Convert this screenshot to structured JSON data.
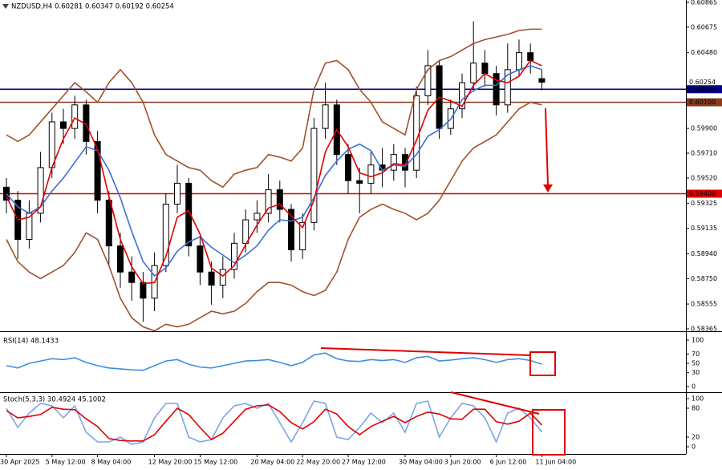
{
  "chart_data": [
    {
      "type": "candlestick",
      "title": "NZDUSD,H4  0.60281 0.60347 0.60192 0.60254",
      "categories": [
        "30 Apr 2025",
        null,
        null,
        null,
        "5 May 12:00",
        null,
        null,
        null,
        "8 May 04:00",
        null,
        null,
        null,
        null,
        "12 May 20:00",
        null,
        null,
        null,
        "15 May 12:00",
        null,
        null,
        null,
        null,
        "20 May 04:00",
        null,
        null,
        null,
        "22 May 20:00",
        null,
        null,
        null,
        "27 May 12:00",
        null,
        null,
        null,
        null,
        "30 May 04:00",
        null,
        null,
        null,
        "3 Jun 20:00",
        null,
        null,
        null,
        "6 Jun 12:00",
        null,
        null,
        null,
        "11 Jun 04:00"
      ],
      "open": [
        0.5945,
        0.5935,
        0.5905,
        0.5925,
        0.596,
        0.5995,
        0.599,
        0.6008,
        0.598,
        0.5935,
        0.59,
        0.588,
        0.5872,
        0.586,
        0.5885,
        0.5932,
        0.5948,
        0.59,
        0.588,
        0.587,
        0.5882,
        0.5902,
        0.592,
        0.5925,
        0.5943,
        0.5928,
        0.5897,
        0.5918,
        0.599,
        0.6008,
        0.597,
        0.595,
        0.5948,
        0.5962,
        0.5958,
        0.597,
        0.5958,
        0.6015,
        0.6038,
        0.599,
        0.6005,
        0.6025,
        0.604,
        0.6032,
        0.6008,
        0.6035,
        0.6048,
        0.60281
      ],
      "high": [
        0.5952,
        0.5942,
        0.5935,
        0.5972,
        0.6002,
        0.6005,
        0.6015,
        0.6012,
        0.5988,
        0.5942,
        0.591,
        0.5892,
        0.588,
        0.5895,
        0.594,
        0.5962,
        0.5952,
        0.5908,
        0.5888,
        0.5892,
        0.591,
        0.5928,
        0.5935,
        0.5955,
        0.595,
        0.5932,
        0.5925,
        0.5998,
        0.6025,
        0.6012,
        0.5978,
        0.596,
        0.5972,
        0.5975,
        0.5978,
        0.5975,
        0.6022,
        0.605,
        0.6042,
        0.6012,
        0.6032,
        0.6072,
        0.605,
        0.6038,
        0.6055,
        0.6058,
        0.6055,
        0.60347
      ],
      "low": [
        0.5925,
        0.589,
        0.5898,
        0.5918,
        0.5952,
        0.5978,
        0.5982,
        0.597,
        0.5925,
        0.5885,
        0.5868,
        0.5858,
        0.5842,
        0.585,
        0.588,
        0.5925,
        0.5892,
        0.587,
        0.5855,
        0.586,
        0.5875,
        0.5895,
        0.591,
        0.5918,
        0.5918,
        0.5888,
        0.589,
        0.5912,
        0.5982,
        0.5962,
        0.594,
        0.5925,
        0.594,
        0.5945,
        0.595,
        0.5945,
        0.5952,
        0.6008,
        0.5982,
        0.5985,
        0.5998,
        0.6018,
        0.6022,
        0.6,
        0.6002,
        0.603,
        0.6032,
        0.60192
      ],
      "close": [
        0.5935,
        0.5905,
        0.5925,
        0.596,
        0.5995,
        0.599,
        0.6008,
        0.598,
        0.5935,
        0.59,
        0.588,
        0.5872,
        0.586,
        0.5885,
        0.5932,
        0.5948,
        0.59,
        0.588,
        0.587,
        0.5882,
        0.5902,
        0.592,
        0.5925,
        0.5943,
        0.5928,
        0.5897,
        0.5918,
        0.599,
        0.6008,
        0.597,
        0.595,
        0.5948,
        0.5962,
        0.5958,
        0.597,
        0.5958,
        0.6015,
        0.6038,
        0.599,
        0.6005,
        0.6025,
        0.604,
        0.6032,
        0.6008,
        0.6035,
        0.6048,
        0.6042,
        0.60254
      ],
      "series": [
        {
          "color": "#a0522d",
          "values": [
            0.5985,
            0.598,
            0.5985,
            0.5995,
            0.6005,
            0.6015,
            0.6025,
            0.6018,
            0.601,
            0.6025,
            0.6035,
            0.6025,
            0.601,
            0.5985,
            0.597,
            0.5965,
            0.596,
            0.5958,
            0.595,
            0.5945,
            0.5955,
            0.5958,
            0.596,
            0.597,
            0.5968,
            0.5965,
            0.5975,
            0.602,
            0.604,
            0.6042,
            0.6035,
            0.602,
            0.601,
            0.5995,
            0.599,
            0.5985,
            0.602,
            0.6035,
            0.6042,
            0.6045,
            0.605,
            0.6055,
            0.6058,
            0.606,
            0.6062,
            0.6065,
            0.6066,
            0.6066
          ]
        },
        {
          "color": "#a0522d",
          "values": [
            0.5905,
            0.5888,
            0.588,
            0.5875,
            0.588,
            0.5885,
            0.5895,
            0.591,
            0.5905,
            0.5885,
            0.586,
            0.5845,
            0.5838,
            0.5835,
            0.584,
            0.5838,
            0.584,
            0.5845,
            0.585,
            0.5848,
            0.585,
            0.5856,
            0.5865,
            0.5872,
            0.5872,
            0.587,
            0.5865,
            0.5862,
            0.5866,
            0.588,
            0.5905,
            0.5922,
            0.5928,
            0.5932,
            0.5928,
            0.5925,
            0.592,
            0.5925,
            0.5935,
            0.595,
            0.5965,
            0.5975,
            0.598,
            0.5985,
            0.5995,
            0.6005,
            0.601,
            0.6008
          ]
        },
        {
          "color": "#3a6fd8",
          "values": [
            0.594,
            0.593,
            0.5925,
            0.593,
            0.5942,
            0.5952,
            0.5964,
            0.5976,
            0.5973,
            0.5958,
            0.5937,
            0.5911,
            0.5888,
            0.5877,
            0.5883,
            0.5896,
            0.5903,
            0.5907,
            0.5899,
            0.5893,
            0.5887,
            0.5893,
            0.59,
            0.5912,
            0.592,
            0.5919,
            0.5922,
            0.5937,
            0.5954,
            0.5965,
            0.5974,
            0.5978,
            0.5973,
            0.5958,
            0.5962,
            0.5961,
            0.597,
            0.5984,
            0.5989,
            0.5997,
            0.6012,
            0.6019,
            0.6023,
            0.6023,
            0.6031,
            0.6035,
            0.6038,
            0.6035
          ]
        },
        {
          "color": "#e00000",
          "values": [
            0.5938,
            0.592,
            0.5922,
            0.593,
            0.596,
            0.5982,
            0.5998,
            0.5993,
            0.5974,
            0.5938,
            0.5905,
            0.5884,
            0.5871,
            0.5872,
            0.5892,
            0.5922,
            0.5927,
            0.5909,
            0.5883,
            0.5877,
            0.5885,
            0.5901,
            0.5916,
            0.5929,
            0.5932,
            0.5923,
            0.5914,
            0.5935,
            0.5972,
            0.5989,
            0.5976,
            0.5956,
            0.5953,
            0.5956,
            0.5963,
            0.5962,
            0.5981,
            0.6004,
            0.6014,
            0.6011,
            0.6007,
            0.6023,
            0.6032,
            0.6027,
            0.6025,
            0.603,
            0.6042,
            0.6038
          ]
        }
      ],
      "ylim": [
        0.58365,
        0.60865
      ],
      "yticks": [
        {
          "value": 0.60865,
          "label": "0.60865"
        },
        {
          "value": 0.60675,
          "label": "0.60675"
        },
        {
          "value": 0.6048,
          "label": "0.60480"
        },
        {
          "value": 0.599,
          "label": "0.59900"
        },
        {
          "value": 0.5971,
          "label": "0.59710"
        },
        {
          "value": 0.5952,
          "label": "0.59520"
        },
        {
          "value": 0.59325,
          "label": "0.59325"
        },
        {
          "value": 0.59135,
          "label": "0.59135"
        },
        {
          "value": 0.5894,
          "label": "0.58940"
        },
        {
          "value": 0.5875,
          "label": "0.58750"
        },
        {
          "value": 0.58555,
          "label": "0.58555"
        },
        {
          "value": 0.58365,
          "label": "0.58365"
        }
      ],
      "levels": [
        {
          "value": 0.602,
          "label": "0.60200",
          "color": "#00008b"
        },
        {
          "value": 0.601,
          "label": "0.60100",
          "color": "#8b3a1a"
        },
        {
          "value": 0.594,
          "label": "0.59400",
          "color": "#e00000"
        }
      ],
      "last_price": {
        "value": 0.60254,
        "label": "0.60254"
      }
    },
    {
      "type": "line",
      "title": "RSI(14) 48.1433",
      "ylim": [
        0,
        100
      ],
      "yticks": [
        100,
        70,
        50,
        30,
        0
      ],
      "series": [
        {
          "color": "#3c8ee0",
          "values": [
            45,
            40,
            50,
            55,
            60,
            58,
            62,
            52,
            45,
            40,
            38,
            36,
            35,
            45,
            55,
            58,
            48,
            42,
            40,
            45,
            50,
            55,
            56,
            58,
            52,
            45,
            52,
            68,
            72,
            60,
            55,
            54,
            58,
            56,
            58,
            52,
            62,
            65,
            55,
            57,
            60,
            62,
            58,
            52,
            58,
            60,
            56,
            48.1433
          ]
        }
      ]
    },
    {
      "type": "line",
      "title": "Stoch(5,3,3) 30.4924 45.1002",
      "ylim": [
        0,
        100
      ],
      "yticks": [
        100,
        80,
        20,
        0
      ],
      "series": [
        {
          "color": "#7aa6e6",
          "values": [
            80,
            40,
            70,
            90,
            85,
            60,
            85,
            30,
            10,
            10,
            20,
            5,
            10,
            60,
            90,
            90,
            20,
            10,
            15,
            60,
            85,
            90,
            80,
            90,
            50,
            10,
            50,
            95,
            90,
            20,
            15,
            40,
            70,
            50,
            70,
            30,
            90,
            95,
            20,
            60,
            90,
            85,
            60,
            10,
            70,
            80,
            60,
            30.4924
          ]
        },
        {
          "color": "#e00000",
          "values": [
            75,
            60,
            63,
            67,
            82,
            78,
            77,
            58,
            42,
            17,
            13,
            12,
            12,
            25,
            53,
            80,
            67,
            40,
            15,
            28,
            53,
            78,
            85,
            87,
            73,
            50,
            37,
            52,
            78,
            68,
            42,
            25,
            42,
            53,
            63,
            50,
            63,
            72,
            68,
            58,
            57,
            78,
            78,
            52,
            47,
            53,
            70,
            45.1002
          ]
        }
      ]
    }
  ]
}
